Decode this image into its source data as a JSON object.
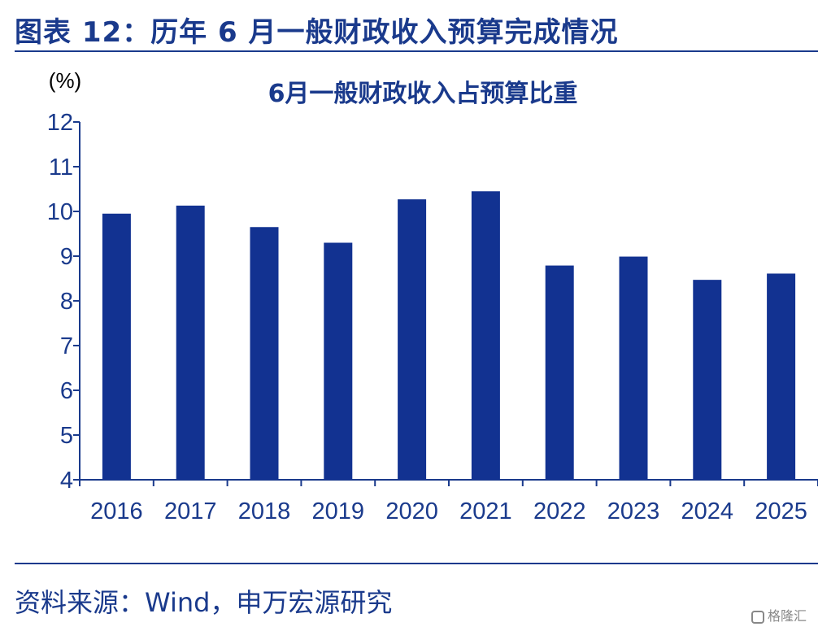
{
  "figure_title": "图表 12：历年 6 月一般财政收入预算完成情况",
  "source_note": "资料来源：Wind，申万宏源研究",
  "watermark": "格隆汇",
  "colors": {
    "accent": "#1a3a8c",
    "bar": "#123291",
    "axis": "#1a3a8c"
  },
  "chart_data": {
    "type": "bar",
    "title": "6月一般财政收入占预算比重",
    "ylabel": "(%)",
    "xlabel": "",
    "categories": [
      "2016",
      "2017",
      "2018",
      "2019",
      "2020",
      "2021",
      "2022",
      "2023",
      "2024",
      "2025"
    ],
    "values": [
      9.95,
      10.13,
      9.65,
      9.3,
      10.27,
      10.45,
      8.79,
      8.99,
      8.47,
      8.61
    ],
    "ylim": [
      4,
      12
    ],
    "yticks": [
      4,
      5,
      6,
      7,
      8,
      9,
      10,
      11,
      12
    ],
    "grid": false,
    "legend": "none"
  }
}
